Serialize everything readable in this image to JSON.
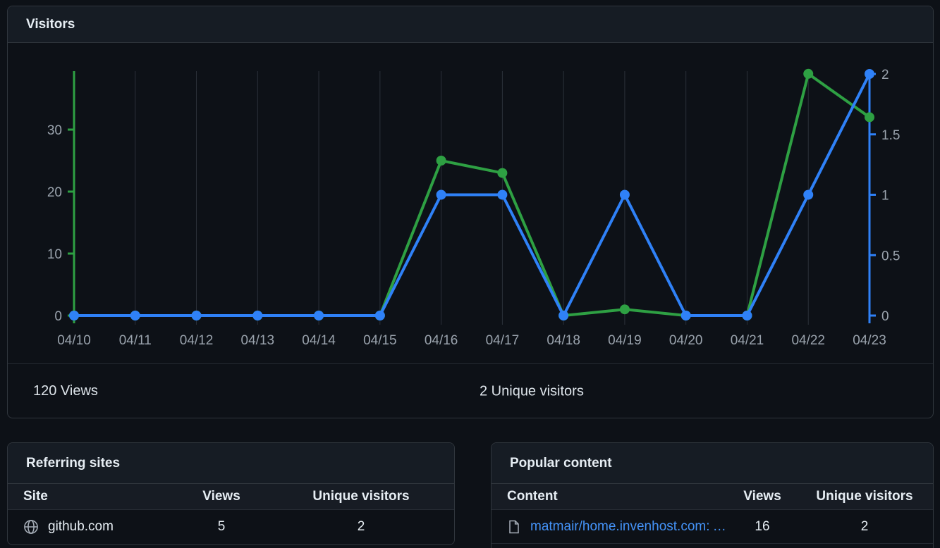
{
  "visitors_panel": {
    "title": "Visitors",
    "footer": {
      "views_total": "120 Views",
      "unique_total": "2 Unique visitors"
    }
  },
  "chart_data": {
    "type": "line",
    "x": [
      "04/10",
      "04/11",
      "04/12",
      "04/13",
      "04/14",
      "04/15",
      "04/16",
      "04/17",
      "04/18",
      "04/19",
      "04/20",
      "04/21",
      "04/22",
      "04/23"
    ],
    "series": [
      {
        "name": "Views",
        "axis": "left",
        "color": "#2ea043",
        "values": [
          0,
          0,
          0,
          0,
          0,
          0,
          25,
          23,
          0,
          1,
          0,
          0,
          39,
          32
        ]
      },
      {
        "name": "Unique visitors",
        "axis": "right",
        "color": "#2f81f7",
        "values": [
          0,
          0,
          0,
          0,
          0,
          0,
          1,
          1,
          0,
          1,
          0,
          0,
          1,
          2
        ]
      }
    ],
    "left_axis": {
      "ticks": [
        0,
        10,
        20,
        30
      ],
      "color": "#2ea043",
      "range": [
        0,
        39.4
      ]
    },
    "right_axis": {
      "ticks": [
        0,
        0.5,
        1,
        1.5,
        2
      ],
      "color": "#2f81f7",
      "range": [
        0,
        2.26
      ]
    },
    "grid": true,
    "grid_color": "#2b313a",
    "legend": "none",
    "title": "Visitors"
  },
  "referring_sites": {
    "title": "Referring sites",
    "columns": [
      "Site",
      "Views",
      "Unique visitors"
    ],
    "rows": [
      {
        "icon": "globe-icon",
        "site": "github.com",
        "views": "5",
        "unique": "2"
      }
    ]
  },
  "popular_content": {
    "title": "Popular content",
    "columns": [
      "Content",
      "Views",
      "Unique visitors"
    ],
    "rows": [
      {
        "icon": "file-icon",
        "content": "matmair/home.invenhost.com: A ...",
        "views": "16",
        "unique": "2"
      }
    ]
  },
  "colors": {
    "background": "#0d1117",
    "panel_border": "#30363d",
    "panel_header_bg": "#161c24",
    "text_primary": "#e6edf3",
    "text_muted": "#9aa3ad",
    "views_green": "#2ea043",
    "unique_blue": "#2f81f7",
    "link_blue": "#4493f8"
  }
}
